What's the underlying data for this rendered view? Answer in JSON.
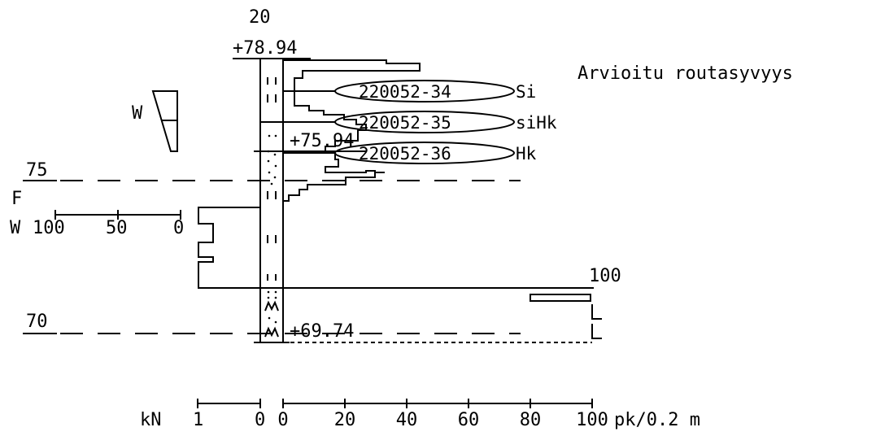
{
  "profile": {
    "point_number": "20",
    "top_elevation": "+78.94",
    "legend_text": "Arvioitu routasyvyys",
    "stone_level_label": "+75.94",
    "end_level_label": "+69.74"
  },
  "samples": [
    {
      "id": "220052-34",
      "soil": "Si"
    },
    {
      "id": "220052-35",
      "soil": "siHk"
    },
    {
      "id": "220052-36",
      "soil": "Hk"
    }
  ],
  "levels": {
    "upper": "75",
    "lower": "70",
    "frost_marker": "F"
  },
  "water_scale": {
    "prefix": "W",
    "ticks": [
      "100",
      "50",
      "0"
    ],
    "triangle_label": "W"
  },
  "bottom_axis": {
    "left_label": "kN",
    "kn_ticks": [
      "1",
      "0"
    ],
    "pk_ticks": [
      "0",
      "20",
      "40",
      "60",
      "80",
      "100"
    ],
    "right_label": "pk/0.2  m"
  },
  "right_marks": {
    "scale_top": "100"
  }
}
